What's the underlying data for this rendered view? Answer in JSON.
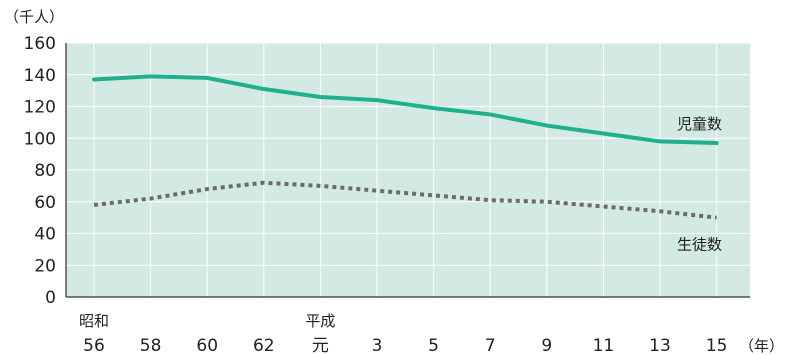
{
  "chart_data": {
    "type": "line",
    "y_unit_label": "（千人）",
    "x_unit_label": "（年）",
    "categories": [
      "56",
      "58",
      "60",
      "62",
      "元",
      "3",
      "5",
      "7",
      "9",
      "11",
      "13",
      "15"
    ],
    "era_labels": [
      {
        "text": "昭和",
        "category": "56"
      },
      {
        "text": "平成",
        "category": "元"
      }
    ],
    "ylim": [
      0,
      160
    ],
    "yticks": [
      0,
      20,
      40,
      60,
      80,
      100,
      120,
      140,
      160
    ],
    "grid": true,
    "series": [
      {
        "name": "児童数",
        "color": "#1fb08c",
        "style": "solid",
        "values": [
          137,
          139,
          138,
          131,
          126,
          124,
          119,
          115,
          108,
          103,
          98,
          97
        ]
      },
      {
        "name": "生徒数",
        "color": "#6b6b6b",
        "style": "dotted",
        "values": [
          58,
          62,
          68,
          72,
          70,
          67,
          64,
          61,
          60,
          57,
          54,
          50
        ]
      }
    ]
  },
  "colors": {
    "plot_background": "#d3e9e3",
    "grid": "#ffffff",
    "axis": "#333333"
  }
}
